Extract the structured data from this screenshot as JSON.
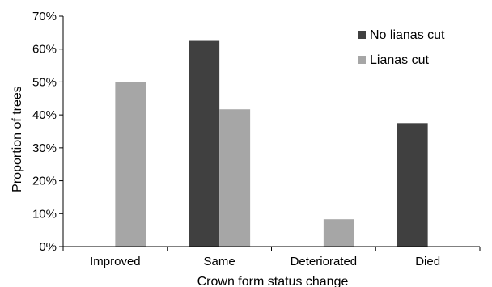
{
  "chart_data": {
    "type": "bar",
    "xlabel": "Crown form status change",
    "ylabel": "Proportion of trees",
    "categories": [
      "Improved",
      "Same",
      "Deteriorated",
      "Died"
    ],
    "ylim": [
      0,
      0.7
    ],
    "yticks": [
      0,
      0.1,
      0.2,
      0.3,
      0.4,
      0.5,
      0.6,
      0.7
    ],
    "ytick_labels": [
      "0%",
      "10%",
      "20%",
      "30%",
      "40%",
      "50%",
      "60%",
      "70%"
    ],
    "series": [
      {
        "name": "No lianas cut",
        "color": "#404040",
        "values": [
          0,
          0.625,
          0,
          0.375
        ]
      },
      {
        "name": "Lianas cut",
        "color": "#a6a6a6",
        "values": [
          0.5,
          0.417,
          0.083,
          0
        ]
      }
    ],
    "grid": false,
    "legend_position": "top-right"
  }
}
